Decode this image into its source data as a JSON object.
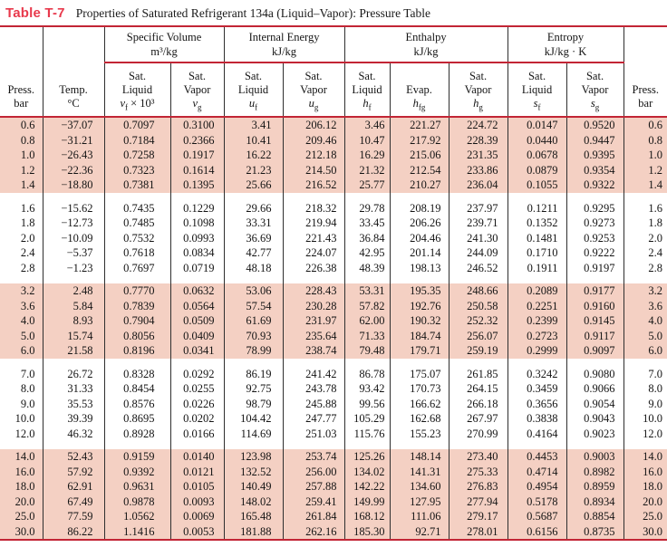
{
  "title": {
    "tag": "Table T-7",
    "caption": "Properties of Saturated Refrigerant 134a (Liquid–Vapor): Pressure Table"
  },
  "colors": {
    "accent_rule_red": "#c22535",
    "title_red": "#e8394c",
    "shaded_row_pink": "#f4d0c3"
  },
  "table": {
    "groups": [
      {
        "title": "Specific Volume",
        "unit": "m³/kg"
      },
      {
        "title": "Internal Energy",
        "unit": "kJ/kg"
      },
      {
        "title": "Enthalpy",
        "unit": "kJ/kg"
      },
      {
        "title": "Entropy",
        "unit": "kJ/kg · K"
      }
    ],
    "columns": [
      {
        "line1": "Press.",
        "line2": "bar"
      },
      {
        "line1": "Temp.",
        "line2": "°C"
      },
      {
        "line1": "Sat.",
        "line2": "Liquid",
        "sym": {
          "base": "v",
          "sub": "f",
          "rest": " × 10³"
        }
      },
      {
        "line1": "Sat.",
        "line2": "Vapor",
        "sym": {
          "base": "v",
          "sub": "g",
          "rest": ""
        }
      },
      {
        "line1": "Sat.",
        "line2": "Liquid",
        "sym": {
          "base": "u",
          "sub": "f",
          "rest": ""
        }
      },
      {
        "line1": "Sat.",
        "line2": "Vapor",
        "sym": {
          "base": "u",
          "sub": "g",
          "rest": ""
        }
      },
      {
        "line1": "Sat.",
        "line2": "Liquid",
        "sym": {
          "base": "h",
          "sub": "f",
          "rest": ""
        }
      },
      {
        "line1": "",
        "line2": "Evap.",
        "sym": {
          "base": "h",
          "sub": "fg",
          "rest": ""
        }
      },
      {
        "line1": "Sat.",
        "line2": "Vapor",
        "sym": {
          "base": "h",
          "sub": "g",
          "rest": ""
        }
      },
      {
        "line1": "Sat.",
        "line2": "Liquid",
        "sym": {
          "base": "s",
          "sub": "f",
          "rest": ""
        }
      },
      {
        "line1": "Sat.",
        "line2": "Vapor",
        "sym": {
          "base": "s",
          "sub": "g",
          "rest": ""
        }
      },
      {
        "line1": "Press.",
        "line2": "bar"
      }
    ],
    "body": {
      "groups": [
        {
          "shaded": true,
          "rows": [
            [
              "0.6",
              "−37.07",
              "0.7097",
              "0.3100",
              "3.41",
              "206.12",
              "3.46",
              "221.27",
              "224.72",
              "0.0147",
              "0.9520",
              "0.6"
            ],
            [
              "0.8",
              "−31.21",
              "0.7184",
              "0.2366",
              "10.41",
              "209.46",
              "10.47",
              "217.92",
              "228.39",
              "0.0440",
              "0.9447",
              "0.8"
            ],
            [
              "1.0",
              "−26.43",
              "0.7258",
              "0.1917",
              "16.22",
              "212.18",
              "16.29",
              "215.06",
              "231.35",
              "0.0678",
              "0.9395",
              "1.0"
            ],
            [
              "1.2",
              "−22.36",
              "0.7323",
              "0.1614",
              "21.23",
              "214.50",
              "21.32",
              "212.54",
              "233.86",
              "0.0879",
              "0.9354",
              "1.2"
            ],
            [
              "1.4",
              "−18.80",
              "0.7381",
              "0.1395",
              "25.66",
              "216.52",
              "25.77",
              "210.27",
              "236.04",
              "0.1055",
              "0.9322",
              "1.4"
            ]
          ]
        },
        {
          "shaded": false,
          "rows": [
            [
              "1.6",
              "−15.62",
              "0.7435",
              "0.1229",
              "29.66",
              "218.32",
              "29.78",
              "208.19",
              "237.97",
              "0.1211",
              "0.9295",
              "1.6"
            ],
            [
              "1.8",
              "−12.73",
              "0.7485",
              "0.1098",
              "33.31",
              "219.94",
              "33.45",
              "206.26",
              "239.71",
              "0.1352",
              "0.9273",
              "1.8"
            ],
            [
              "2.0",
              "−10.09",
              "0.7532",
              "0.0993",
              "36.69",
              "221.43",
              "36.84",
              "204.46",
              "241.30",
              "0.1481",
              "0.9253",
              "2.0"
            ],
            [
              "2.4",
              "−5.37",
              "0.7618",
              "0.0834",
              "42.77",
              "224.07",
              "42.95",
              "201.14",
              "244.09",
              "0.1710",
              "0.9222",
              "2.4"
            ],
            [
              "2.8",
              "−1.23",
              "0.7697",
              "0.0719",
              "48.18",
              "226.38",
              "48.39",
              "198.13",
              "246.52",
              "0.1911",
              "0.9197",
              "2.8"
            ]
          ]
        },
        {
          "shaded": true,
          "rows": [
            [
              "3.2",
              "2.48",
              "0.7770",
              "0.0632",
              "53.06",
              "228.43",
              "53.31",
              "195.35",
              "248.66",
              "0.2089",
              "0.9177",
              "3.2"
            ],
            [
              "3.6",
              "5.84",
              "0.7839",
              "0.0564",
              "57.54",
              "230.28",
              "57.82",
              "192.76",
              "250.58",
              "0.2251",
              "0.9160",
              "3.6"
            ],
            [
              "4.0",
              "8.93",
              "0.7904",
              "0.0509",
              "61.69",
              "231.97",
              "62.00",
              "190.32",
              "252.32",
              "0.2399",
              "0.9145",
              "4.0"
            ],
            [
              "5.0",
              "15.74",
              "0.8056",
              "0.0409",
              "70.93",
              "235.64",
              "71.33",
              "184.74",
              "256.07",
              "0.2723",
              "0.9117",
              "5.0"
            ],
            [
              "6.0",
              "21.58",
              "0.8196",
              "0.0341",
              "78.99",
              "238.74",
              "79.48",
              "179.71",
              "259.19",
              "0.2999",
              "0.9097",
              "6.0"
            ]
          ]
        },
        {
          "shaded": false,
          "rows": [
            [
              "7.0",
              "26.72",
              "0.8328",
              "0.0292",
              "86.19",
              "241.42",
              "86.78",
              "175.07",
              "261.85",
              "0.3242",
              "0.9080",
              "7.0"
            ],
            [
              "8.0",
              "31.33",
              "0.8454",
              "0.0255",
              "92.75",
              "243.78",
              "93.42",
              "170.73",
              "264.15",
              "0.3459",
              "0.9066",
              "8.0"
            ],
            [
              "9.0",
              "35.53",
              "0.8576",
              "0.0226",
              "98.79",
              "245.88",
              "99.56",
              "166.62",
              "266.18",
              "0.3656",
              "0.9054",
              "9.0"
            ],
            [
              "10.0",
              "39.39",
              "0.8695",
              "0.0202",
              "104.42",
              "247.77",
              "105.29",
              "162.68",
              "267.97",
              "0.3838",
              "0.9043",
              "10.0"
            ],
            [
              "12.0",
              "46.32",
              "0.8928",
              "0.0166",
              "114.69",
              "251.03",
              "115.76",
              "155.23",
              "270.99",
              "0.4164",
              "0.9023",
              "12.0"
            ]
          ]
        },
        {
          "shaded": true,
          "rows": [
            [
              "14.0",
              "52.43",
              "0.9159",
              "0.0140",
              "123.98",
              "253.74",
              "125.26",
              "148.14",
              "273.40",
              "0.4453",
              "0.9003",
              "14.0"
            ],
            [
              "16.0",
              "57.92",
              "0.9392",
              "0.0121",
              "132.52",
              "256.00",
              "134.02",
              "141.31",
              "275.33",
              "0.4714",
              "0.8982",
              "16.0"
            ],
            [
              "18.0",
              "62.91",
              "0.9631",
              "0.0105",
              "140.49",
              "257.88",
              "142.22",
              "134.60",
              "276.83",
              "0.4954",
              "0.8959",
              "18.0"
            ],
            [
              "20.0",
              "67.49",
              "0.9878",
              "0.0093",
              "148.02",
              "259.41",
              "149.99",
              "127.95",
              "277.94",
              "0.5178",
              "0.8934",
              "20.0"
            ],
            [
              "25.0",
              "77.59",
              "1.0562",
              "0.0069",
              "165.48",
              "261.84",
              "168.12",
              "111.06",
              "279.17",
              "0.5687",
              "0.8854",
              "25.0"
            ],
            [
              "30.0",
              "86.22",
              "1.1416",
              "0.0053",
              "181.88",
              "262.16",
              "185.30",
              "92.71",
              "278.01",
              "0.6156",
              "0.8735",
              "30.0"
            ]
          ]
        }
      ]
    }
  }
}
